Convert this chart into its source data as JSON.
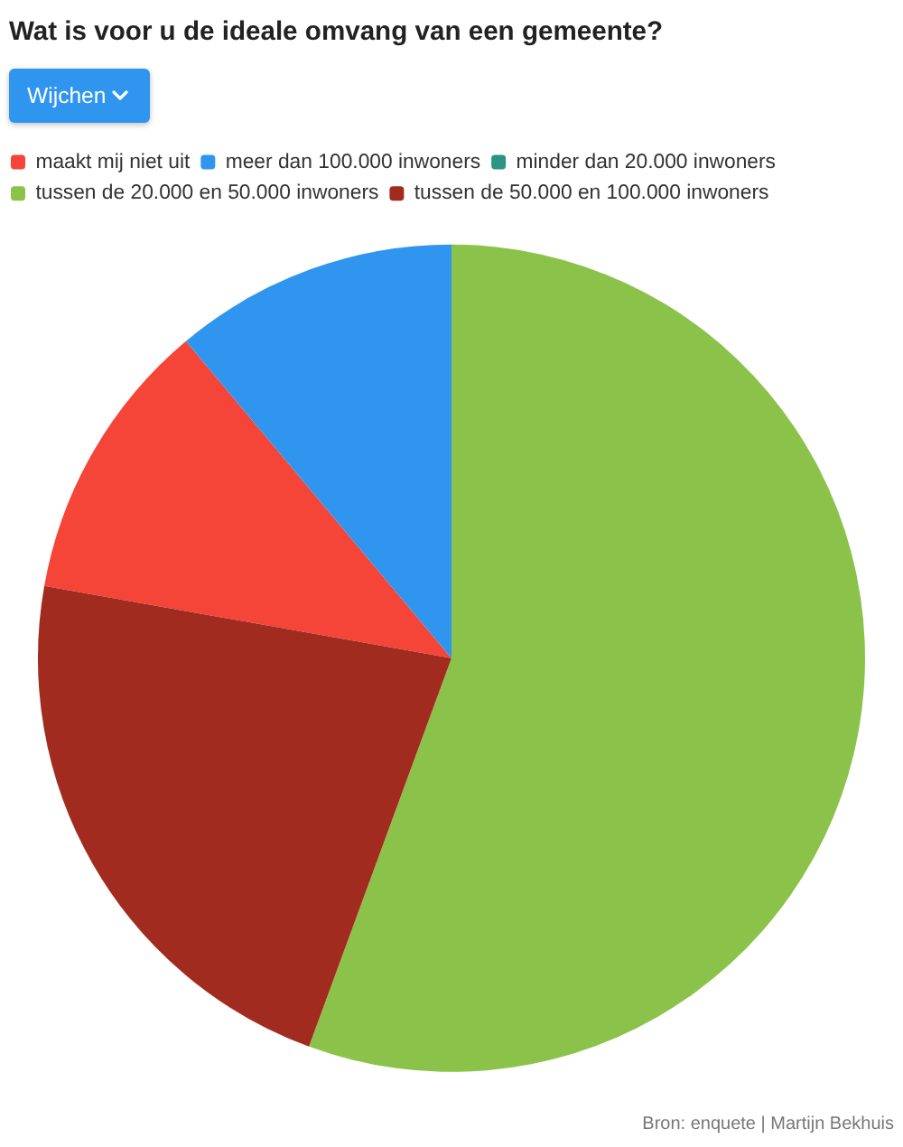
{
  "chart_data": {
    "type": "pie",
    "title": "Wat is voor u de ideale omvang van een gemeente?",
    "subtitle": "Wijchen",
    "categories": [
      "maakt mij niet uit",
      "meer dan 100.000 inwoners",
      "minder dan 20.000 inwoners",
      "tussen de 20.000 en 50.000 inwoners",
      "tussen de 50.000 en 100.000 inwoners"
    ],
    "values": [
      11.1,
      11.1,
      0,
      55.6,
      22.2
    ],
    "colors": [
      "#f44538",
      "#2f95ef",
      "#2a9583",
      "#8bc34a",
      "#a22b20"
    ],
    "legend": "top left",
    "annotations": [
      "Bron: enquete | Martijn Bekhuis"
    ]
  }
}
